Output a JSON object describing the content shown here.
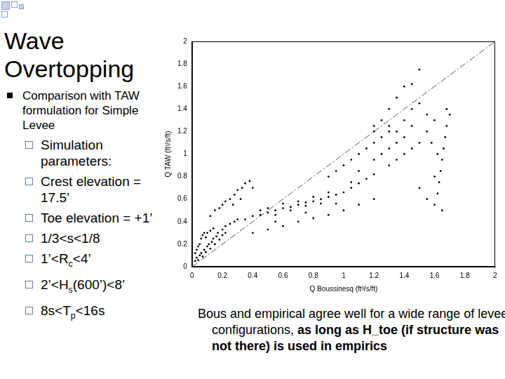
{
  "slide": {
    "title": "Wave Overtopping",
    "bullets": [
      {
        "level": 1,
        "parts": [
          {
            "text": "Comparison with TAW formulation for Simple Levee"
          }
        ]
      },
      {
        "level": 2,
        "parts": [
          {
            "text": "Simulation parameters:"
          }
        ]
      },
      {
        "level": 2,
        "parts": [
          {
            "text": "Crest elevation = 17.5’"
          }
        ]
      },
      {
        "level": 2,
        "parts": [
          {
            "text": "Toe elevation = +1’"
          }
        ]
      },
      {
        "level": 2,
        "parts": [
          {
            "text": "1/3<s<1/8"
          }
        ]
      },
      {
        "level": 2,
        "parts": [
          {
            "text": "1’<R"
          },
          {
            "text": "c",
            "sub": true
          },
          {
            "text": "<4’"
          }
        ]
      },
      {
        "level": 2,
        "parts": [
          {
            "text": "2’<H"
          },
          {
            "text": "s",
            "sub": true
          },
          {
            "text": "(600’)<8’"
          }
        ]
      },
      {
        "level": 2,
        "parts": [
          {
            "text": "8s<T"
          },
          {
            "text": "p",
            "sub": true
          },
          {
            "text": "<16s"
          }
        ]
      }
    ],
    "caption": [
      {
        "text": "Bous and empirical agree well for a wide range of levee configurations, "
      },
      {
        "text": "as long as H_toe (if structure was not there) is used in empirics",
        "bold": true
      }
    ]
  },
  "chart_data": {
    "type": "scatter",
    "x_label": "Q Boussinesq (ft³/s/ft)",
    "y_label": "Q TAW (ft³/s/ft)",
    "xlim": [
      0,
      2
    ],
    "ylim": [
      0,
      2
    ],
    "xticks": [
      0,
      0.2,
      0.4,
      0.6,
      0.8,
      1,
      1.2,
      1.4,
      1.6,
      1.8,
      2
    ],
    "yticks": [
      0,
      0.2,
      0.4,
      0.6,
      0.8,
      1,
      1.2,
      1.4,
      1.6,
      1.8,
      2
    ],
    "grid": false,
    "series": [
      {
        "type": "scatter",
        "color": "#000000",
        "marker": "dot",
        "points": [
          [
            0.02,
            0.05
          ],
          [
            0.03,
            0.08
          ],
          [
            0.04,
            0.06
          ],
          [
            0.05,
            0.1
          ],
          [
            0.06,
            0.12
          ],
          [
            0.07,
            0.09
          ],
          [
            0.08,
            0.15
          ],
          [
            0.09,
            0.13
          ],
          [
            0.1,
            0.18
          ],
          [
            0.11,
            0.2
          ],
          [
            0.12,
            0.16
          ],
          [
            0.13,
            0.22
          ],
          [
            0.14,
            0.25
          ],
          [
            0.15,
            0.2
          ],
          [
            0.16,
            0.27
          ],
          [
            0.05,
            0.2
          ],
          [
            0.06,
            0.25
          ],
          [
            0.07,
            0.28
          ],
          [
            0.08,
            0.3
          ],
          [
            0.09,
            0.26
          ],
          [
            0.1,
            0.3
          ],
          [
            0.12,
            0.32
          ],
          [
            0.14,
            0.34
          ],
          [
            0.17,
            0.3
          ],
          [
            0.2,
            0.33
          ],
          [
            0.22,
            0.36
          ],
          [
            0.25,
            0.38
          ],
          [
            0.28,
            0.4
          ],
          [
            0.3,
            0.42
          ],
          [
            0.18,
            0.24
          ],
          [
            0.2,
            0.28
          ],
          [
            0.22,
            0.3
          ],
          [
            0.03,
            0.15
          ],
          [
            0.04,
            0.18
          ],
          [
            0.02,
            0.12
          ],
          [
            0.12,
            0.45
          ],
          [
            0.15,
            0.5
          ],
          [
            0.18,
            0.52
          ],
          [
            0.2,
            0.55
          ],
          [
            0.22,
            0.58
          ],
          [
            0.25,
            0.6
          ],
          [
            0.28,
            0.64
          ],
          [
            0.3,
            0.68
          ],
          [
            0.33,
            0.7
          ],
          [
            0.35,
            0.74
          ],
          [
            0.38,
            0.76
          ],
          [
            0.4,
            0.7
          ],
          [
            0.27,
            0.55
          ],
          [
            0.32,
            0.6
          ],
          [
            0.35,
            0.42
          ],
          [
            0.4,
            0.45
          ],
          [
            0.45,
            0.46
          ],
          [
            0.5,
            0.48
          ],
          [
            0.55,
            0.5
          ],
          [
            0.6,
            0.52
          ],
          [
            0.65,
            0.53
          ],
          [
            0.7,
            0.55
          ],
          [
            0.75,
            0.57
          ],
          [
            0.8,
            0.58
          ],
          [
            0.85,
            0.6
          ],
          [
            0.9,
            0.62
          ],
          [
            0.95,
            0.64
          ],
          [
            1.0,
            0.66
          ],
          [
            1.05,
            0.7
          ],
          [
            1.1,
            0.74
          ],
          [
            1.15,
            0.78
          ],
          [
            1.2,
            0.82
          ],
          [
            0.5,
            0.52
          ],
          [
            0.6,
            0.56
          ],
          [
            0.7,
            0.58
          ],
          [
            0.8,
            0.62
          ],
          [
            0.9,
            0.66
          ],
          [
            0.45,
            0.5
          ],
          [
            0.55,
            0.46
          ],
          [
            0.65,
            0.5
          ],
          [
            0.75,
            0.54
          ],
          [
            0.85,
            0.56
          ],
          [
            0.4,
            0.3
          ],
          [
            0.5,
            0.33
          ],
          [
            0.6,
            0.36
          ],
          [
            0.7,
            0.4
          ],
          [
            0.8,
            0.43
          ],
          [
            0.9,
            0.46
          ],
          [
            1.0,
            0.5
          ],
          [
            1.1,
            0.55
          ],
          [
            1.2,
            0.6
          ],
          [
            0.55,
            0.4
          ],
          [
            0.75,
            0.48
          ],
          [
            0.95,
            0.56
          ],
          [
            0.9,
            0.8
          ],
          [
            0.95,
            0.85
          ],
          [
            1.0,
            0.9
          ],
          [
            1.05,
            0.95
          ],
          [
            1.1,
            1.0
          ],
          [
            1.15,
            1.05
          ],
          [
            1.2,
            1.1
          ],
          [
            1.25,
            1.15
          ],
          [
            1.3,
            1.2
          ],
          [
            1.05,
            0.75
          ],
          [
            1.1,
            0.85
          ],
          [
            1.2,
            0.95
          ],
          [
            1.25,
            1.0
          ],
          [
            1.3,
            1.05
          ],
          [
            1.35,
            1.1
          ],
          [
            1.4,
            1.15
          ],
          [
            1.2,
            1.25
          ],
          [
            1.25,
            1.3
          ],
          [
            1.3,
            1.4
          ],
          [
            1.35,
            1.5
          ],
          [
            1.4,
            1.6
          ],
          [
            1.45,
            1.62
          ],
          [
            1.5,
            1.75
          ],
          [
            1.3,
            1.25
          ],
          [
            1.4,
            1.3
          ],
          [
            1.45,
            1.4
          ],
          [
            1.5,
            1.45
          ],
          [
            1.3,
            0.9
          ],
          [
            1.35,
            0.95
          ],
          [
            1.4,
            1.0
          ],
          [
            1.45,
            1.05
          ],
          [
            1.5,
            1.1
          ],
          [
            1.55,
            1.2
          ],
          [
            1.2,
            1.2
          ],
          [
            1.35,
            1.2
          ],
          [
            1.45,
            1.25
          ],
          [
            1.55,
            1.35
          ],
          [
            1.6,
            0.55
          ],
          [
            1.62,
            0.65
          ],
          [
            1.63,
            0.75
          ],
          [
            1.64,
            0.85
          ],
          [
            1.65,
            0.95
          ],
          [
            1.66,
            1.05
          ],
          [
            1.67,
            1.15
          ],
          [
            1.68,
            1.25
          ],
          [
            1.7,
            1.35
          ],
          [
            1.68,
            1.4
          ],
          [
            1.65,
            0.5
          ],
          [
            1.6,
            0.8
          ],
          [
            1.62,
            1.0
          ],
          [
            1.58,
            1.1
          ],
          [
            1.6,
            1.3
          ],
          [
            1.55,
            0.6
          ],
          [
            1.5,
            0.7
          ]
        ]
      },
      {
        "type": "line",
        "color": "#555555",
        "line_style": "dashdot",
        "points": [
          [
            0,
            0
          ],
          [
            2,
            2
          ]
        ]
      }
    ]
  }
}
